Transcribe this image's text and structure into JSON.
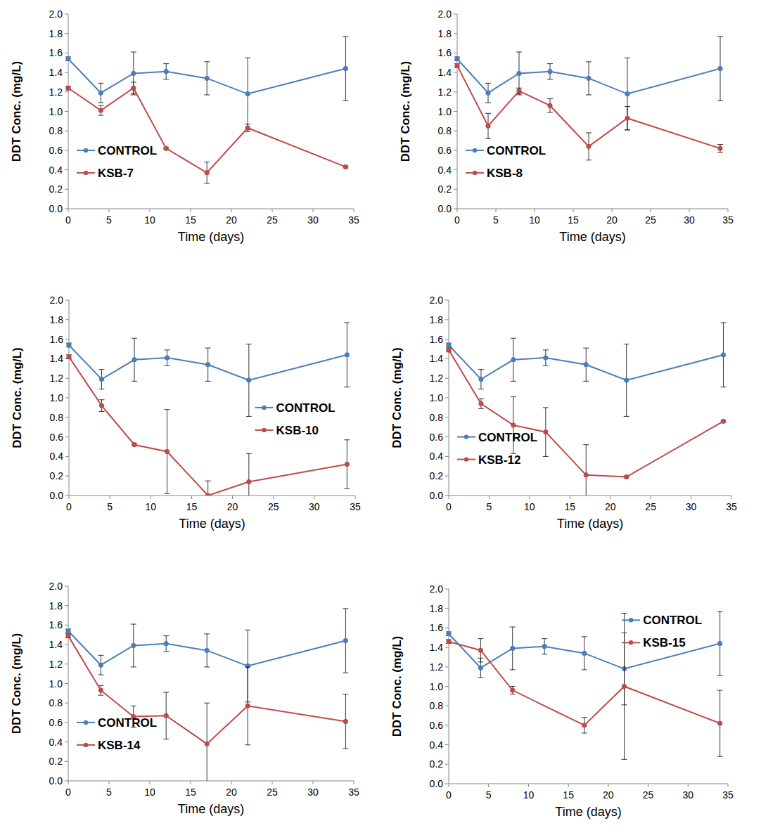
{
  "chart_data": [
    {
      "type": "line",
      "xlabel": "Time (days)",
      "ylabel": "DDT Conc. (mg/L)",
      "x": [
        0,
        4,
        8,
        12,
        17,
        22,
        34
      ],
      "xlim": [
        0,
        35
      ],
      "ylim": [
        0,
        2
      ],
      "xticks": [
        0,
        5,
        10,
        15,
        20,
        25,
        30,
        35
      ],
      "yticks": [
        {
          "value": 0,
          "label": "0.0"
        },
        0.2,
        0.4,
        0.6,
        0.8,
        {
          "value": 1,
          "label": "1.0"
        },
        1.2,
        1.4,
        1.6,
        1.8,
        {
          "value": 2,
          "label": "2.0"
        }
      ],
      "grid": false,
      "legend": "lower left",
      "marker": "circle",
      "series": [
        {
          "name": "CONTROL",
          "color": "#4a7ebb",
          "values": [
            1.54,
            1.19,
            1.39,
            1.41,
            1.34,
            1.18,
            1.44
          ],
          "errors": [
            0.02,
            0.1,
            0.22,
            0.08,
            0.17,
            0.37,
            0.33
          ]
        },
        {
          "name": "KSB-7",
          "color": "#be4b48",
          "values": [
            1.24,
            1.01,
            1.24,
            0.62,
            0.37,
            0.83,
            0.43
          ],
          "errors": [
            0.02,
            0.05,
            0.06,
            0.01,
            0.11,
            0.04,
            0.01
          ]
        }
      ]
    },
    {
      "type": "line",
      "xlabel": "Time (days)",
      "ylabel": "DDT Conc. (mg/L)",
      "x": [
        0,
        4,
        8,
        12,
        17,
        22,
        34
      ],
      "xlim": [
        0,
        35
      ],
      "ylim": [
        0,
        2
      ],
      "xticks": [
        0,
        5,
        10,
        15,
        20,
        25,
        30,
        35
      ],
      "yticks": [
        {
          "value": 0,
          "label": "0.0"
        },
        0.2,
        0.4,
        0.6,
        0.8,
        {
          "value": 1,
          "label": "1.0"
        },
        1.2,
        1.4,
        1.6,
        1.8,
        {
          "value": 2,
          "label": "2.0"
        }
      ],
      "grid": false,
      "legend": "lower left",
      "marker": "circle",
      "series": [
        {
          "name": "CONTROL",
          "color": "#4a7ebb",
          "values": [
            1.54,
            1.19,
            1.39,
            1.41,
            1.34,
            1.18,
            1.44
          ],
          "errors": [
            0.02,
            0.1,
            0.22,
            0.08,
            0.17,
            0.37,
            0.33
          ]
        },
        {
          "name": "KSB-8",
          "color": "#be4b48",
          "values": [
            1.47,
            0.85,
            1.21,
            1.06,
            0.64,
            0.93,
            0.62
          ],
          "errors": [
            0.02,
            0.13,
            0.03,
            0.07,
            0.14,
            0.12,
            0.04
          ]
        }
      ]
    },
    {
      "type": "line",
      "xlabel": "Time (days)",
      "ylabel": "DDT Conc. (mg/L)",
      "x": [
        0,
        4,
        8,
        12,
        17,
        22,
        34
      ],
      "xlim": [
        0,
        35
      ],
      "ylim": [
        0,
        2
      ],
      "xticks": [
        0,
        5,
        10,
        15,
        20,
        25,
        30,
        35
      ],
      "yticks": [
        {
          "value": 0,
          "label": "0.0"
        },
        0.2,
        0.4,
        0.6,
        0.8,
        {
          "value": 1,
          "label": "1.0"
        },
        1.2,
        1.4,
        1.6,
        1.8,
        {
          "value": 2,
          "label": "2.0"
        }
      ],
      "grid": false,
      "legend": "center right",
      "marker": "circle",
      "series": [
        {
          "name": "CONTROL",
          "color": "#4a7ebb",
          "values": [
            1.54,
            1.19,
            1.39,
            1.41,
            1.34,
            1.18,
            1.44
          ],
          "errors": [
            0.02,
            0.1,
            0.22,
            0.08,
            0.17,
            0.37,
            0.33
          ]
        },
        {
          "name": "KSB-10",
          "color": "#be4b48",
          "values": [
            1.42,
            0.92,
            0.52,
            0.45,
            0.0,
            0.14,
            0.32
          ],
          "errors": [
            0.02,
            0.06,
            0.01,
            0.43,
            0.15,
            0.29,
            0.25
          ]
        }
      ]
    },
    {
      "type": "line",
      "xlabel": "Time (days)",
      "ylabel": "DDT Conc. (mg/L)",
      "x": [
        0,
        4,
        8,
        12,
        17,
        22,
        34
      ],
      "xlim": [
        0,
        35
      ],
      "ylim": [
        0,
        2
      ],
      "xticks": [
        0,
        5,
        10,
        15,
        20,
        25,
        30,
        35
      ],
      "yticks": [
        {
          "value": 0,
          "label": "0.0"
        },
        0.2,
        0.4,
        0.6,
        0.8,
        {
          "value": 1,
          "label": "1.0"
        },
        1.2,
        1.4,
        1.6,
        1.8,
        {
          "value": 2,
          "label": "2.0"
        }
      ],
      "grid": false,
      "legend": "lower left",
      "marker": "circle",
      "series": [
        {
          "name": "CONTROL",
          "color": "#4a7ebb",
          "values": [
            1.54,
            1.19,
            1.39,
            1.41,
            1.34,
            1.18,
            1.44
          ],
          "errors": [
            0.02,
            0.1,
            0.22,
            0.08,
            0.17,
            0.37,
            0.33
          ]
        },
        {
          "name": "KSB-12",
          "color": "#be4b48",
          "values": [
            1.49,
            0.94,
            0.72,
            0.65,
            0.21,
            0.19,
            0.76
          ],
          "errors": [
            0.02,
            0.05,
            0.29,
            0.25,
            0.31,
            0.01,
            0.01
          ]
        }
      ]
    },
    {
      "type": "line",
      "xlabel": "Time (days)",
      "ylabel": "DDT Conc. (mg/L)",
      "x": [
        0,
        4,
        8,
        12,
        17,
        22,
        34
      ],
      "xlim": [
        0,
        35
      ],
      "ylim": [
        0,
        2
      ],
      "xticks": [
        0,
        5,
        10,
        15,
        20,
        25,
        30,
        35
      ],
      "yticks": [
        {
          "value": 0,
          "label": "0.0"
        },
        0.2,
        0.4,
        0.6,
        0.8,
        {
          "value": 1,
          "label": "1.0"
        },
        1.2,
        1.4,
        1.6,
        1.8,
        {
          "value": 2,
          "label": "2.0"
        }
      ],
      "grid": false,
      "legend": "lower left",
      "marker": "circle",
      "series": [
        {
          "name": "CONTROL",
          "color": "#4a7ebb",
          "values": [
            1.54,
            1.19,
            1.39,
            1.41,
            1.34,
            1.18,
            1.44
          ],
          "errors": [
            0.02,
            0.1,
            0.22,
            0.08,
            0.17,
            0.37,
            0.33
          ]
        },
        {
          "name": "KSB-14",
          "color": "#be4b48",
          "values": [
            1.49,
            0.93,
            0.66,
            0.67,
            0.38,
            0.77,
            0.61
          ],
          "errors": [
            0.02,
            0.05,
            0.11,
            0.24,
            0.42,
            0.4,
            0.28
          ]
        }
      ]
    },
    {
      "type": "line",
      "xlabel": "Time (days)",
      "ylabel": "DDT Conc. (mg/L)",
      "x": [
        0,
        4,
        8,
        12,
        17,
        22,
        34
      ],
      "xlim": [
        0,
        35
      ],
      "ylim": [
        0,
        2
      ],
      "xticks": [
        0,
        5,
        10,
        15,
        20,
        25,
        30,
        35
      ],
      "yticks": [
        {
          "value": 0,
          "label": "0.0"
        },
        0.2,
        0.4,
        0.6,
        0.8,
        {
          "value": 1,
          "label": "1.0"
        },
        1.2,
        1.4,
        1.6,
        1.8,
        {
          "value": 2,
          "label": "2.0"
        }
      ],
      "grid": false,
      "legend": "upper right",
      "marker": "circle",
      "series": [
        {
          "name": "CONTROL",
          "color": "#4a7ebb",
          "values": [
            1.54,
            1.19,
            1.39,
            1.41,
            1.34,
            1.18,
            1.44
          ],
          "errors": [
            0.02,
            0.1,
            0.22,
            0.08,
            0.17,
            0.37,
            0.33
          ]
        },
        {
          "name": "KSB-15",
          "color": "#be4b48",
          "x": [
            0,
            4,
            8,
            17,
            22,
            34
          ],
          "values": [
            1.46,
            1.37,
            0.96,
            0.6,
            1.0,
            0.62
          ],
          "errors": [
            0.02,
            0.12,
            0.04,
            0.08,
            0.75,
            0.34
          ]
        }
      ]
    }
  ]
}
